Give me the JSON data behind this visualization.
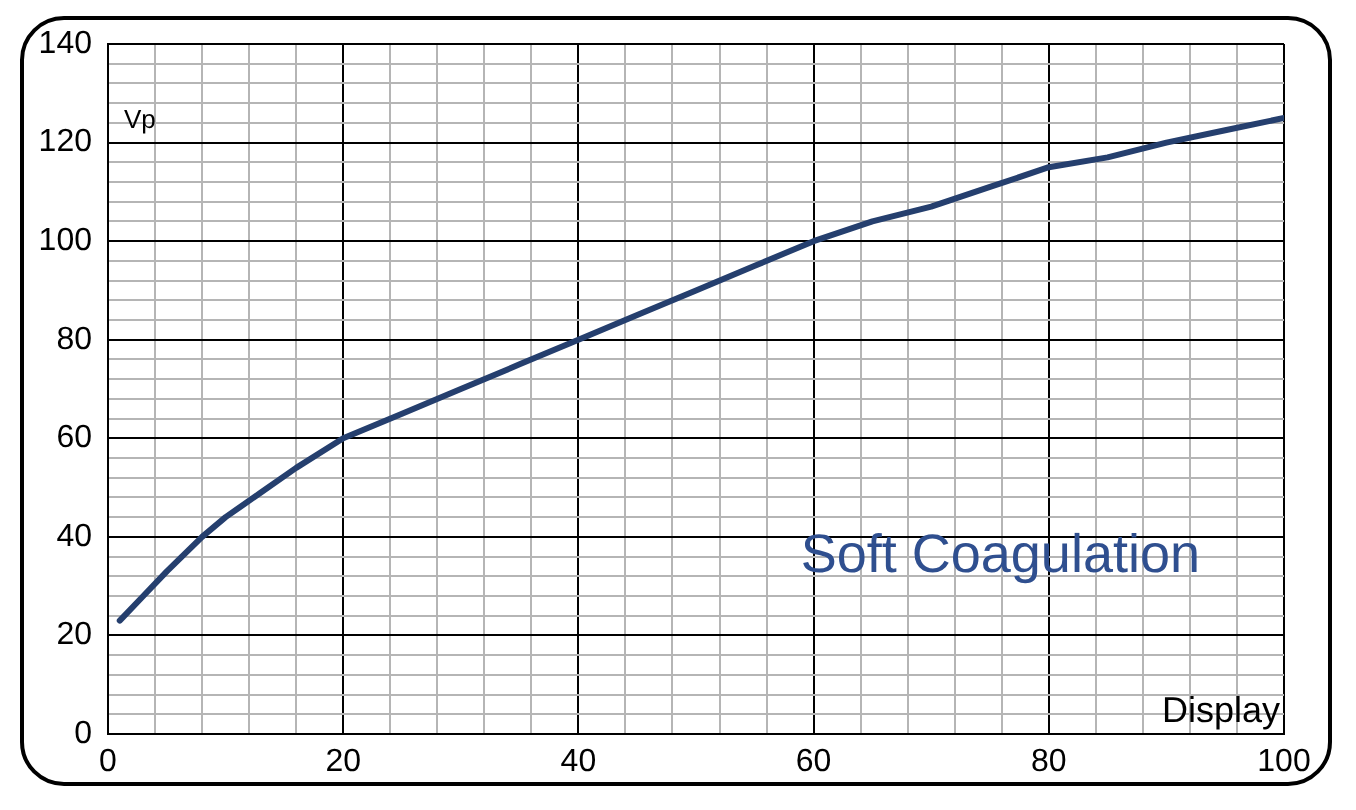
{
  "chart_data": {
    "type": "line",
    "xlabel": "Display",
    "ylabel": "Vp",
    "annotations": [
      "Soft Coagulation"
    ],
    "x": [
      1,
      3,
      5,
      8,
      10,
      13,
      16,
      20,
      25,
      30,
      35,
      40,
      45,
      50,
      55,
      60,
      65,
      70,
      75,
      80,
      85,
      90,
      95,
      100
    ],
    "series": [
      {
        "color": "#253f6e",
        "values": [
          23,
          28,
          33,
          40,
          44,
          49,
          54,
          60,
          65,
          70,
          75,
          80,
          85,
          90,
          95,
          100,
          104,
          107,
          111,
          115,
          117,
          120,
          122.5,
          125
        ]
      }
    ],
    "xlim": [
      0,
      100
    ],
    "ylim": [
      0,
      140
    ],
    "xticks": [
      0,
      {
        "value": 4,
        "label": null
      },
      {
        "value": 8,
        "label": null
      },
      {
        "value": 12,
        "label": null
      },
      {
        "value": 16,
        "label": null
      },
      20,
      {
        "value": 24,
        "label": null
      },
      {
        "value": 28,
        "label": null
      },
      {
        "value": 32,
        "label": null
      },
      {
        "value": 36,
        "label": null
      },
      40,
      {
        "value": 44,
        "label": null
      },
      {
        "value": 48,
        "label": null
      },
      {
        "value": 52,
        "label": null
      },
      {
        "value": 56,
        "label": null
      },
      60,
      {
        "value": 64,
        "label": null
      },
      {
        "value": 68,
        "label": null
      },
      {
        "value": 72,
        "label": null
      },
      {
        "value": 76,
        "label": null
      },
      80,
      {
        "value": 84,
        "label": null
      },
      {
        "value": 88,
        "label": null
      },
      {
        "value": 92,
        "label": null
      },
      {
        "value": 96,
        "label": null
      },
      100
    ],
    "yticks": [
      0,
      {
        "value": 4,
        "label": null
      },
      {
        "value": 8,
        "label": null
      },
      {
        "value": 12,
        "label": null
      },
      {
        "value": 16,
        "label": null
      },
      20,
      {
        "value": 24,
        "label": null
      },
      {
        "value": 28,
        "label": null
      },
      {
        "value": 32,
        "label": null
      },
      {
        "value": 36,
        "label": null
      },
      40,
      {
        "value": 44,
        "label": null
      },
      {
        "value": 48,
        "label": null
      },
      {
        "value": 52,
        "label": null
      },
      {
        "value": 56,
        "label": null
      },
      60,
      {
        "value": 64,
        "label": null
      },
      {
        "value": 68,
        "label": null
      },
      {
        "value": 72,
        "label": null
      },
      {
        "value": 76,
        "label": null
      },
      80,
      {
        "value": 84,
        "label": null
      },
      {
        "value": 88,
        "label": null
      },
      {
        "value": 92,
        "label": null
      },
      {
        "value": 96,
        "label": null
      },
      100,
      {
        "value": 104,
        "label": null
      },
      {
        "value": 108,
        "label": null
      },
      {
        "value": 112,
        "label": null
      },
      {
        "value": 116,
        "label": null
      },
      120,
      {
        "value": 124,
        "label": null
      },
      {
        "value": 128,
        "label": null
      },
      {
        "value": 132,
        "label": null
      },
      {
        "value": 136,
        "label": null
      },
      140
    ],
    "grid": true,
    "marker": "none",
    "line_style": "solid"
  }
}
